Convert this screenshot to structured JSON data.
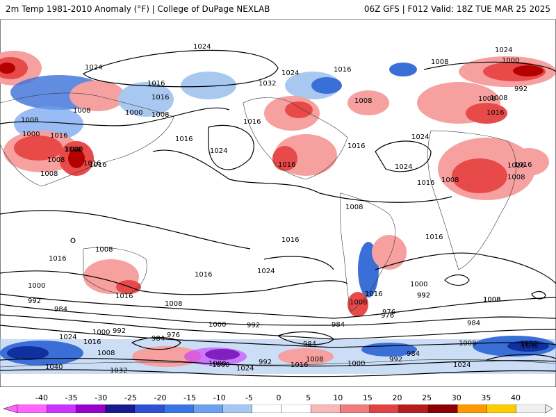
{
  "header": {
    "left_title": "2m Temp 1981-2010 Anomaly (°F) | College of DuPage NEXLAB",
    "right_title": "06Z GFS | F012 Valid: 18Z TUE MAR 25 2025"
  },
  "map": {
    "projection": "global equirectangular",
    "isobar_color": "#000000",
    "isobar_labels": [
      "1024",
      "1024",
      "1032",
      "1024",
      "1016",
      "1008",
      "1016",
      "1024",
      "1008",
      "1016",
      "1008",
      "1000",
      "1016",
      "1000",
      "1016",
      "1008",
      "1008",
      "1008",
      "1008",
      "1000",
      "1016",
      "1016",
      "1024",
      "1016",
      "1016",
      "1008",
      "1016",
      "1016",
      "1024",
      "1024",
      "1016",
      "1008",
      "1016",
      "1008",
      "1008",
      "1000",
      "992",
      "1008",
      "1016",
      "1008",
      "1016",
      "1016",
      "1016",
      "1008",
      "1016",
      "1024",
      "1000",
      "992",
      "984",
      "1016",
      "1008",
      "1000",
      "992",
      "984",
      "1008",
      "1016",
      "1008",
      "1000",
      "992",
      "976",
      "1024",
      "1016",
      "1000",
      "992",
      "976",
      "984",
      "1008",
      "1000",
      "992",
      "976",
      "984",
      "1008",
      "984",
      "1008",
      "1032",
      "1040",
      "1032",
      "1000",
      "992",
      "1016",
      "1008",
      "1000",
      "992",
      "984",
      "1024",
      "1024",
      "1032"
    ],
    "anomaly_palette": {
      "strong_warm": "#b30000",
      "warm": "#e84a4a",
      "mild_warm": "#f6a0a0",
      "mild_cold": "#a8c8f0",
      "cold": "#3a6fd8",
      "strong_cold": "#1030a0",
      "purple": "#8020c0"
    }
  },
  "colorbar": {
    "labels": [
      "-40",
      "-35",
      "-30",
      "-25",
      "-20",
      "-15",
      "-10",
      "-5",
      "0",
      "5",
      "10",
      "15",
      "20",
      "25",
      "30",
      "35",
      "40"
    ],
    "colors": [
      "#ff66ff",
      "#cc33ff",
      "#9900cc",
      "#1a1a8c",
      "#2e4fd6",
      "#3a75e8",
      "#6ea0f0",
      "#a8c8f4",
      "#ffffff",
      "#ffffff",
      "#f7b8b8",
      "#ef7d7d",
      "#e34242",
      "#b71c1c",
      "#8b0000",
      "#ff9900",
      "#ffcc00",
      "#f0f0f0"
    ]
  }
}
